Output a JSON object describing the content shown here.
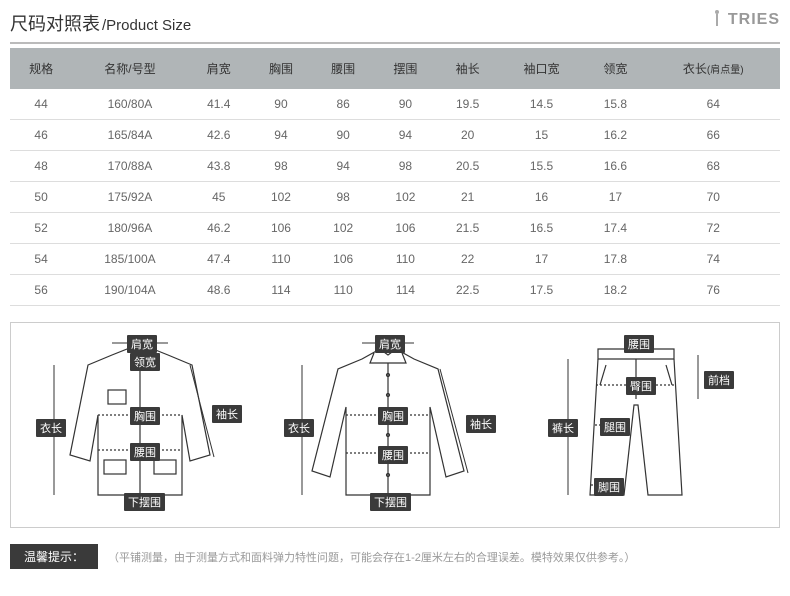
{
  "header": {
    "title_cn": "尺码对照表",
    "title_en": "/Product Size",
    "brand": "TRIES"
  },
  "table": {
    "columns": [
      "规格",
      "名称/号型",
      "肩宽",
      "胸围",
      "腰围",
      "摆围",
      "袖长",
      "袖口宽",
      "领宽",
      "衣长"
    ],
    "col_sub": [
      "",
      "",
      "",
      "",
      "",
      "",
      "",
      "",
      "",
      "(肩点量)"
    ],
    "rows": [
      [
        "44",
        "160/80A",
        "41.4",
        "90",
        "86",
        "90",
        "19.5",
        "14.5",
        "15.8",
        "64"
      ],
      [
        "46",
        "165/84A",
        "42.6",
        "94",
        "90",
        "94",
        "20",
        "15",
        "16.2",
        "66"
      ],
      [
        "48",
        "170/88A",
        "43.8",
        "98",
        "94",
        "98",
        "20.5",
        "15.5",
        "16.6",
        "68"
      ],
      [
        "50",
        "175/92A",
        "45",
        "102",
        "98",
        "102",
        "21",
        "16",
        "17",
        "70"
      ],
      [
        "52",
        "180/96A",
        "46.2",
        "106",
        "102",
        "106",
        "21.5",
        "16.5",
        "17.4",
        "72"
      ],
      [
        "54",
        "185/100A",
        "47.4",
        "110",
        "106",
        "110",
        "22",
        "17",
        "17.8",
        "74"
      ],
      [
        "56",
        "190/104A",
        "48.6",
        "114",
        "110",
        "114",
        "22.5",
        "17.5",
        "18.2",
        "76"
      ]
    ]
  },
  "diagrams": {
    "jacket": {
      "labels": {
        "shoulder": "肩宽",
        "collar": "领宽",
        "chest": "胸围",
        "waist": "腰围",
        "hem": "下摆围",
        "length": "衣长",
        "sleeve": "袖长"
      }
    },
    "shirt": {
      "labels": {
        "shoulder": "肩宽",
        "chest": "胸围",
        "waist": "腰围",
        "hem": "下摆围",
        "length": "衣长",
        "sleeve": "袖长"
      }
    },
    "pants": {
      "labels": {
        "waist": "腰围",
        "hip": "臀围",
        "thigh": "腿围",
        "leg": "脚围",
        "length": "裤长",
        "rise": "前档"
      }
    }
  },
  "footer": {
    "tip_label": "温馨提示：",
    "tip_text": "（平铺测量，由于测量方式和面料弹力特性问题，可能会存在1-2厘米左右的合理误差。模特效果仅供参考。）"
  },
  "style": {
    "header_bg": "#b0b5b7",
    "row_border": "#dddddd",
    "label_bg": "#3a3a3a"
  }
}
